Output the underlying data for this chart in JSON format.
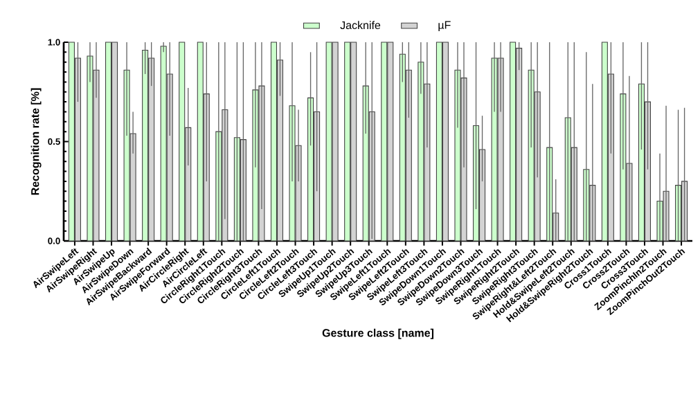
{
  "chart_data": {
    "type": "bar",
    "xlabel": "Gesture class [name]",
    "ylabel": "Recognition rate [%]",
    "categories": [
      "AirSwipeLeft",
      "AirSwipeRight",
      "AirSwipeUp",
      "AirSwipeDown",
      "AirSwipeBackward",
      "AirSwipeForward",
      "AirCircleRight",
      "AirCircleLeft",
      "CircleRight1Touch",
      "CircleRight2Touch",
      "CircleRight3Touch",
      "CircleLeft1Touch",
      "CircleLeft2Touch",
      "CircleLeft3Touch",
      "SwipeUp1Touch",
      "SwipeUp2Touch",
      "SwipeUp3Touch",
      "SwipeLeft1Touch",
      "SwipeLeft2Touch",
      "SwipeLeft3Touch",
      "SwipeDown1Touch",
      "SwipeDown2Touch",
      "SwipeDown3Touch",
      "SwipeRight1Touch",
      "SwipeRight2Touch",
      "SwipeRight3Touch",
      "SwipeRight&Left2Touch",
      "Hold&SwipeLeft2Touch",
      "Hold&SwipeRight2Touch",
      "Cross1Touch",
      "Cross2Touch",
      "Cross3Touch",
      "ZoomPinchIn2Touch",
      "ZoomPinchOut2Touch"
    ],
    "series": [
      {
        "name": "Jacknife",
        "color": "#ccffcc",
        "values": [
          1.0,
          0.93,
          1.0,
          0.86,
          0.96,
          0.98,
          1.0,
          1.0,
          0.55,
          0.52,
          0.76,
          1.0,
          0.68,
          0.72,
          1.0,
          1.0,
          0.78,
          1.0,
          0.94,
          0.9,
          1.0,
          0.86,
          0.58,
          0.92,
          1.0,
          0.86,
          0.47,
          0.62,
          0.36,
          1.0,
          0.74,
          0.79,
          0.2,
          0.28
        ],
        "errors": [
          null,
          [
            0.8,
            1.0
          ],
          null,
          [
            0.53,
            1.0
          ],
          [
            0.84,
            1.0
          ],
          [
            0.95,
            1.0
          ],
          null,
          null,
          [
            0.0,
            1.0
          ],
          [
            0.0,
            1.0
          ],
          [
            0.37,
            1.0
          ],
          null,
          [
            0.3,
            1.0
          ],
          [
            0.48,
            0.95
          ],
          null,
          null,
          [
            0.54,
            1.0
          ],
          null,
          [
            0.8,
            1.0
          ],
          [
            0.74,
            1.0
          ],
          null,
          [
            0.57,
            1.0
          ],
          [
            0.16,
            1.0
          ],
          [
            0.65,
            1.0
          ],
          null,
          [
            0.47,
            1.0
          ],
          [
            0.0,
            1.0
          ],
          [
            0.0,
            1.0
          ],
          [
            0.0,
            0.95
          ],
          null,
          [
            0.36,
            1.0
          ],
          [
            0.46,
            1.0
          ],
          [
            0.0,
            0.44
          ],
          [
            0.0,
            0.66
          ]
        ]
      },
      {
        "name": "µF",
        "color": "#d3d3d3",
        "values": [
          0.92,
          0.86,
          1.0,
          0.54,
          0.92,
          0.84,
          0.57,
          0.74,
          0.66,
          0.51,
          0.78,
          0.91,
          0.48,
          0.65,
          1.0,
          1.0,
          0.65,
          1.0,
          0.86,
          0.79,
          1.0,
          0.82,
          0.46,
          0.92,
          0.97,
          0.75,
          0.14,
          0.47,
          0.28,
          0.84,
          0.39,
          0.7,
          0.25,
          0.3
        ],
        "errors": [
          [
            0.7,
            1.0
          ],
          [
            0.72,
            1.0
          ],
          null,
          [
            0.44,
            0.65
          ],
          [
            0.78,
            1.0
          ],
          [
            0.53,
            1.0
          ],
          [
            0.38,
            0.77
          ],
          [
            0.3,
            1.0
          ],
          [
            0.11,
            1.0
          ],
          [
            0.0,
            1.0
          ],
          [
            0.16,
            1.0
          ],
          [
            0.73,
            1.0
          ],
          [
            0.3,
            0.66
          ],
          [
            0.25,
            1.0
          ],
          null,
          null,
          [
            0.01,
            1.0
          ],
          null,
          [
            0.62,
            1.0
          ],
          [
            0.47,
            1.0
          ],
          null,
          [
            0.37,
            1.0
          ],
          [
            0.3,
            0.63
          ],
          [
            0.65,
            1.0
          ],
          [
            0.86,
            1.0
          ],
          [
            0.32,
            1.0
          ],
          [
            0.0,
            0.31
          ],
          [
            0.0,
            1.0
          ],
          [
            0.0,
            0.79
          ],
          [
            0.44,
            1.0
          ],
          [
            0.0,
            0.83
          ],
          [
            0.36,
            1.0
          ],
          [
            0.0,
            0.68
          ],
          [
            0.0,
            0.67
          ]
        ]
      }
    ],
    "ylim": [
      0,
      1
    ],
    "yticks": [
      {
        "value": 0,
        "label": "0.0"
      },
      {
        "value": 0.5,
        "label": "0.5"
      },
      {
        "value": 1,
        "label": "1.0"
      }
    ],
    "grid": false,
    "legend": "top"
  }
}
